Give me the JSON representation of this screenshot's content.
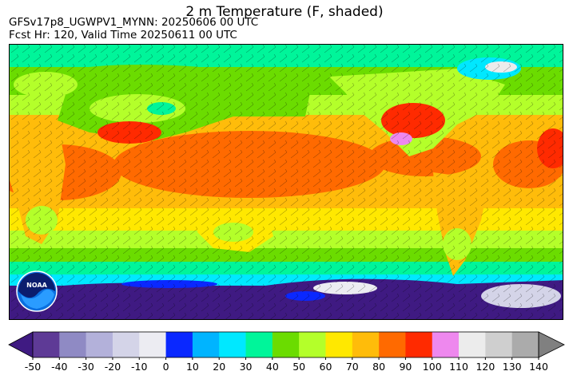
{
  "header": {
    "title": "2 m Temperature (F, shaded)",
    "model_line": "GFSv17p8_UGWPV1_MYNN: 20250606 00 UTC",
    "forecast_line": "Fcst Hr: 120, Valid Time 20250611 00 UTC"
  },
  "logo": {
    "text": "NOAA",
    "icon": "noaa-logo-icon"
  },
  "colorbar": {
    "units": "F",
    "tick_labels": [
      "-50",
      "-40",
      "-30",
      "-20",
      "-10",
      "0",
      "10",
      "20",
      "30",
      "40",
      "50",
      "60",
      "70",
      "80",
      "90",
      "100",
      "110",
      "120",
      "130",
      "140"
    ],
    "under_color": "#3f1a82",
    "over_color": "#808080",
    "colors": [
      "#5e3a96",
      "#8f8ac4",
      "#b3b1da",
      "#d4d4e8",
      "#ececf2",
      "#0a28ff",
      "#00b4ff",
      "#00e8ff",
      "#00f59a",
      "#6bdc00",
      "#b4ff2a",
      "#ffe800",
      "#ffbc0a",
      "#ff6a00",
      "#ff2a00",
      "#ee88ee",
      "#ececec",
      "#cfcfcf",
      "#ababab"
    ]
  },
  "map_colors": {
    "ocean_tropical": "#ff6a00",
    "ocean_subtropical": "#ffbc0a",
    "ocean_midlat": "#b4ff2a",
    "ocean_cool": "#6bdc00",
    "ocean_cold": "#00f59a",
    "polar_sea": "#00e8ff",
    "antarctic_ice": "#3f1a82",
    "land_hot": "#ff2a00"
  }
}
